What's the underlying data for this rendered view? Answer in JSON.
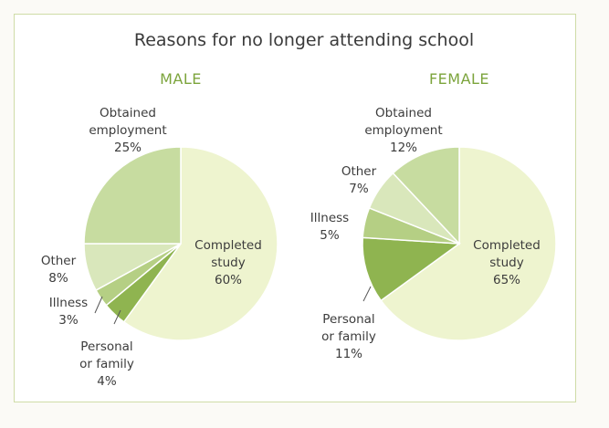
{
  "title": "Reasons for no longer attending school",
  "colors": {
    "completed": "#eef4cf",
    "obtained": "#c7dca0",
    "other": "#d9e7bb",
    "illness": "#b5cf84",
    "personal": "#8fb450",
    "leader": "#555555"
  },
  "chart_data": [
    {
      "type": "pie",
      "title": "MALE",
      "slices": [
        {
          "key": "completed",
          "label_lines": [
            "Completed",
            "study",
            "60%"
          ],
          "value": 60
        },
        {
          "key": "personal",
          "label_lines": [
            "Personal",
            "or family",
            "4%"
          ],
          "value": 4
        },
        {
          "key": "illness",
          "label_lines": [
            "Illness",
            "3%"
          ],
          "value": 3
        },
        {
          "key": "other",
          "label_lines": [
            "Other",
            "8%"
          ],
          "value": 8
        },
        {
          "key": "obtained",
          "label_lines": [
            "Obtained",
            "employment",
            "25%"
          ],
          "value": 25
        }
      ]
    },
    {
      "type": "pie",
      "title": "FEMALE",
      "slices": [
        {
          "key": "completed",
          "label_lines": [
            "Completed",
            "study",
            "65%"
          ],
          "value": 65
        },
        {
          "key": "personal",
          "label_lines": [
            "Personal",
            "or family",
            "11%"
          ],
          "value": 11
        },
        {
          "key": "illness",
          "label_lines": [
            "Illness",
            "5%"
          ],
          "value": 5
        },
        {
          "key": "other",
          "label_lines": [
            "Other",
            "7%"
          ],
          "value": 7
        },
        {
          "key": "obtained",
          "label_lines": [
            "Obtained",
            "employment",
            "12%"
          ],
          "value": 12
        }
      ]
    }
  ]
}
